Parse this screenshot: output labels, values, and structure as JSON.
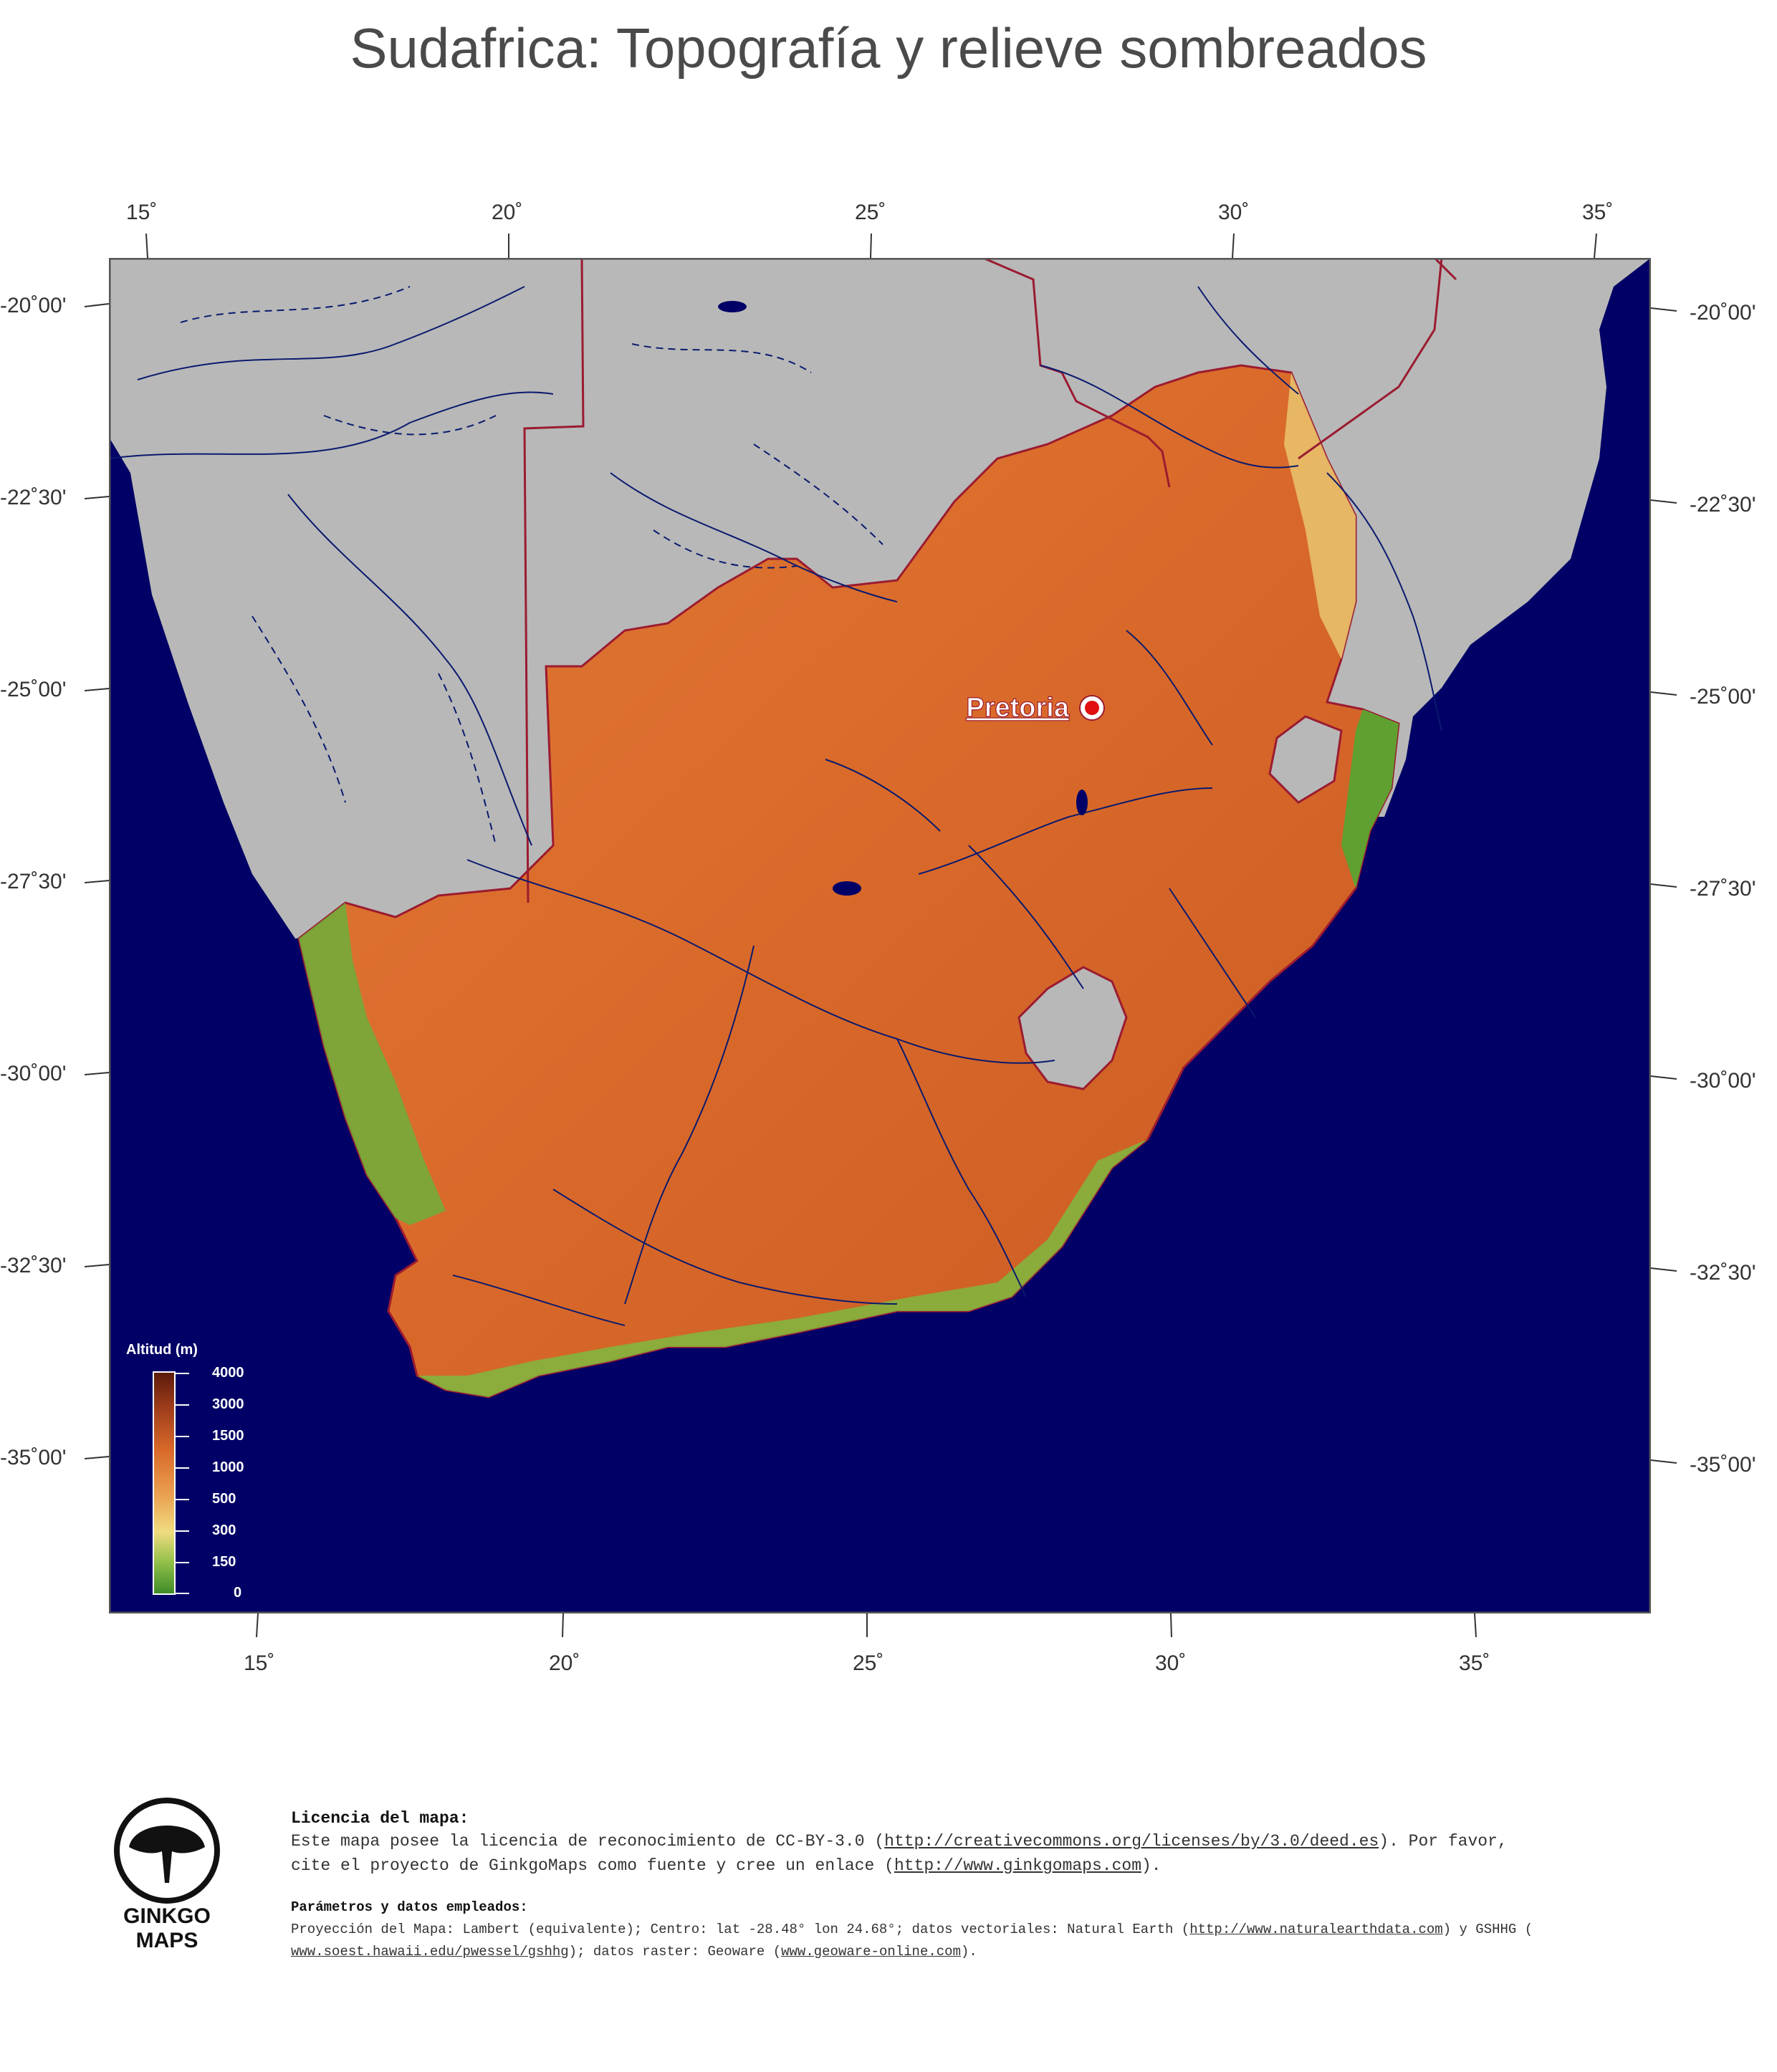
{
  "title": "Sudafrica: Topografía y relieve sombreados",
  "axes": {
    "top_lon": [
      "15˚",
      "20˚",
      "25˚",
      "30˚",
      "35˚"
    ],
    "bottom_lon": [
      "15˚",
      "20˚",
      "25˚",
      "30˚",
      "35˚"
    ],
    "left_lat": [
      "-20˚00'",
      "-22˚30'",
      "-25˚00'",
      "-27˚30'",
      "-30˚00'",
      "-32˚30'",
      "-35˚00'"
    ],
    "right_lat": [
      "-20˚00'",
      "-22˚30'",
      "-25˚00'",
      "-27˚30'",
      "-30˚00'",
      "-32˚30'",
      "-35˚00'"
    ]
  },
  "map": {
    "city_label": "Pretoria",
    "colors": {
      "ocean": "#000066",
      "outside_land": "#b8b8b8",
      "land_mid": "#d9692a",
      "land_low": "#e8c06a",
      "coast_green": "#6fae3a",
      "border": "#9b1b30",
      "rivers": "#0a1a6e"
    }
  },
  "legend": {
    "title": "Altitud  (m)",
    "ticks": [
      "4000",
      "3000",
      "1500",
      "1000",
      "500",
      "300",
      "150",
      "0"
    ]
  },
  "footer": {
    "logo_line1": "GINKGO",
    "logo_line2": "MAPS",
    "license_heading": "Licencia del mapa:",
    "license_text1a": "Este mapa posee la licencia de reconocimiento de CC-BY-3.0 (",
    "license_link1": "http://creativecommons.org/licenses/by/3.0/deed.es",
    "license_text1b": ").  Por favor,",
    "license_text2a": "cite el proyecto de GinkgoMaps como fuente y cree un enlace (",
    "license_link2": "http://www.ginkgomaps.com",
    "license_text2b": ").",
    "params_heading": "Parámetros y datos empleados:",
    "params_text1a": "Proyección del Mapa: Lambert (equivalente); Centro: lat -28.48° lon 24.68°; datos vectoriales: Natural Earth (",
    "params_link1": "http://www.naturalearthdata.com",
    "params_text1b": ") y GSHHG (",
    "params_link2": "www.soest.hawaii.edu/pwessel/gshhg",
    "params_text2a": "); datos raster: Geoware (",
    "params_link3": "www.geoware-online.com",
    "params_text2b": ")."
  }
}
